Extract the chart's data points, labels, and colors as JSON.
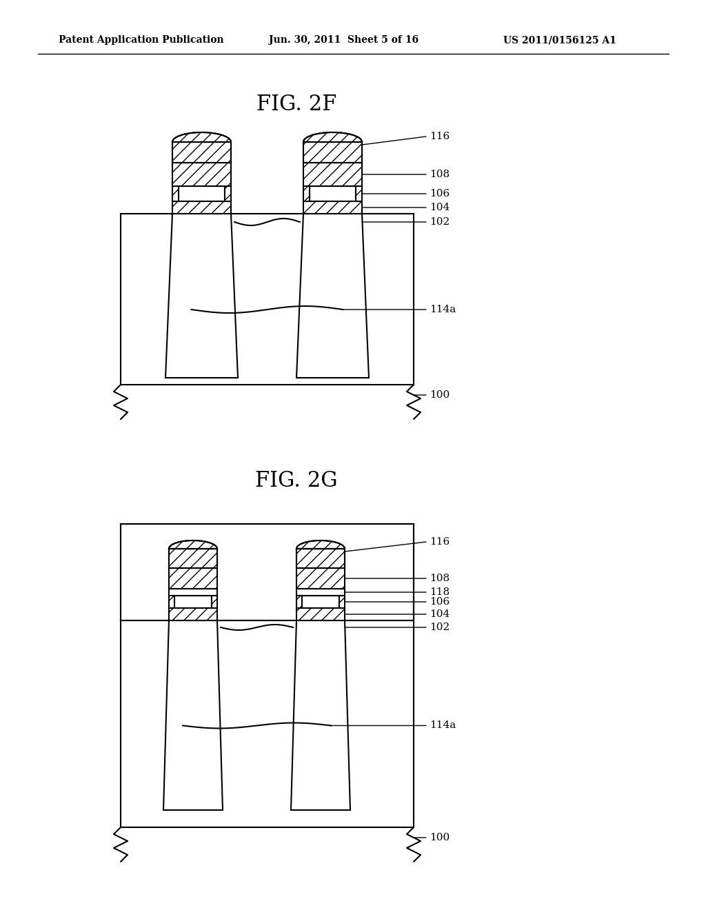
{
  "bg_color": "#ffffff",
  "header_left": "Patent Application Publication",
  "header_mid": "Jun. 30, 2011  Sheet 5 of 16",
  "header_right": "US 2011/0156125 A1",
  "fig_title_1": "FIG. 2F",
  "fig_title_2": "FIG. 2G",
  "line_color": "#000000"
}
